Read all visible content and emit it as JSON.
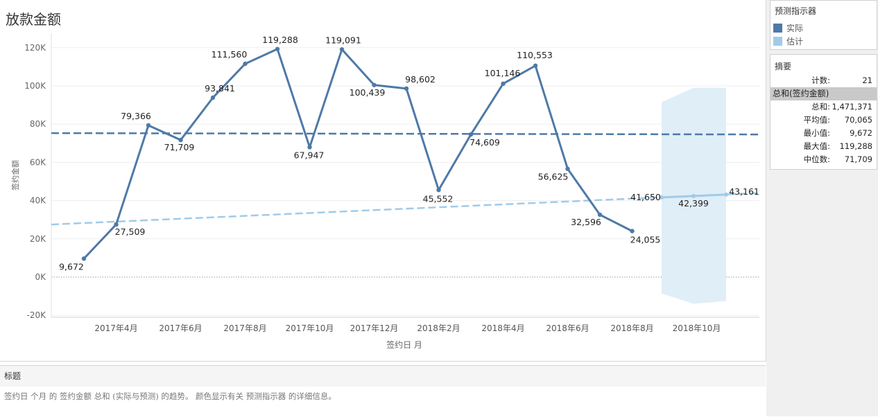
{
  "chart_data": {
    "type": "line",
    "title": "放款金额",
    "xlabel": "签约日 月",
    "ylabel": "签约金额",
    "ylim": [
      -20000,
      120000
    ],
    "yticks": [
      -20000,
      0,
      20000,
      40000,
      60000,
      80000,
      100000,
      120000
    ],
    "ytick_labels": [
      "-20K",
      "0K",
      "20K",
      "40K",
      "60K",
      "80K",
      "100K",
      "120K"
    ],
    "x_tick_labels": [
      "2017年4月",
      "2017年6月",
      "2017年8月",
      "2017年10月",
      "2017年12月",
      "2018年2月",
      "2018年4月",
      "2018年6月",
      "2018年8月",
      "2018年10月"
    ],
    "grid": true,
    "series": [
      {
        "name": "实际",
        "color": "#4e79a7",
        "x": [
          "2017-03",
          "2017-04",
          "2017-05",
          "2017-06",
          "2017-07",
          "2017-08",
          "2017-09",
          "2017-10",
          "2017-11",
          "2017-12",
          "2018-01",
          "2018-02",
          "2018-03",
          "2018-04",
          "2018-05",
          "2018-06",
          "2018-07",
          "2018-08"
        ],
        "values": [
          9672,
          27509,
          79366,
          71709,
          93841,
          111560,
          119288,
          67947,
          119091,
          100439,
          98602,
          45552,
          74609,
          101146,
          110553,
          56625,
          32596,
          24055
        ],
        "labels": [
          "9,672",
          "27,509",
          "79,366",
          "71,709",
          "93,841",
          "111,560",
          "119,288",
          "67,947",
          "119,091",
          "100,439",
          "98,602",
          "45,552",
          "74,609",
          "101,146",
          "110,553",
          "56,625",
          "32,596",
          "24,055"
        ]
      },
      {
        "name": "估计",
        "color": "#a0cbe8",
        "x": [
          "2018-09",
          "2018-10",
          "2018-11"
        ],
        "values": [
          41650,
          42399,
          43161
        ],
        "labels": [
          "41,650",
          "42,399",
          "43,161"
        ],
        "band_upper": [
          91500,
          99000,
          99000
        ],
        "band_lower": [
          -8500,
          -14000,
          -12500
        ]
      }
    ],
    "trend_lines": [
      {
        "color": "#4e79a7",
        "y_start": 75300,
        "y_end": 74600
      },
      {
        "color": "#a0cbe8",
        "y_start": 27500,
        "y_end": 44000
      }
    ]
  },
  "legend": {
    "title": "预测指示器",
    "items": [
      {
        "label": "实际",
        "color": "#4e79a7"
      },
      {
        "label": "估计",
        "color": "#a0cbe8"
      }
    ]
  },
  "summary": {
    "title": "摘要",
    "count_label": "计数:",
    "count_value": "21",
    "group_label": "总和(签约金额)",
    "rows": [
      {
        "label": "总和:",
        "value": "1,471,371"
      },
      {
        "label": "平均值:",
        "value": "70,065"
      },
      {
        "label": "最小值:",
        "value": "9,672"
      },
      {
        "label": "最大值:",
        "value": "119,288"
      },
      {
        "label": "中位数:",
        "value": "71,709"
      }
    ]
  },
  "caption": {
    "title": "标题",
    "text": "签约日 个月 的 签约金额 总和 (实际与预测) 的趋势。 颜色显示有关 预测指示器 的详细信息。"
  }
}
